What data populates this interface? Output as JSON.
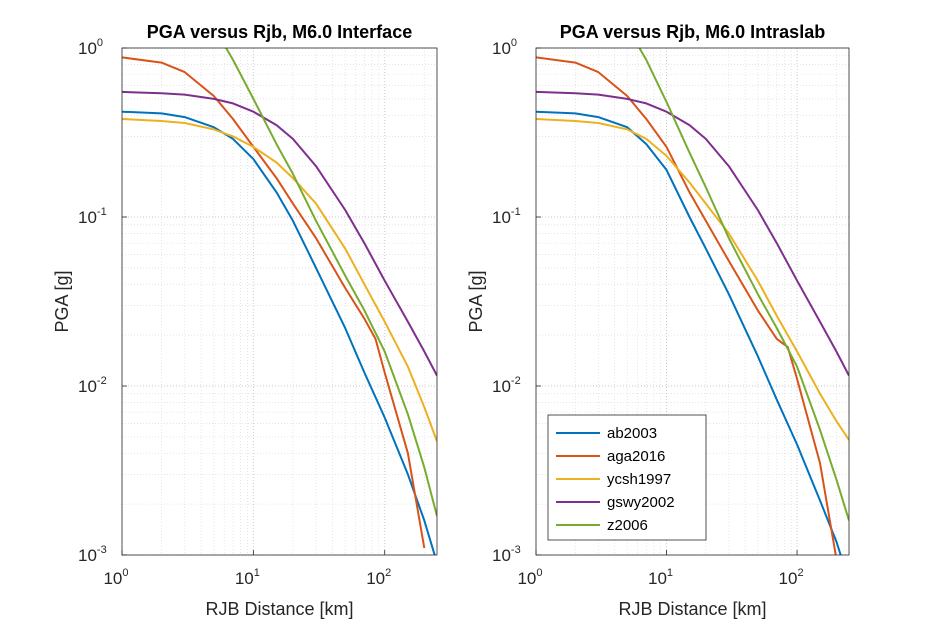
{
  "chart_data": [
    {
      "type": "line",
      "title": "PGA versus Rjb, M6.0 Interface",
      "xlabel": "RJB Distance [km]",
      "ylabel": "PGA [g]",
      "xscale": "log",
      "yscale": "log",
      "xlim": [
        1,
        250
      ],
      "ylim": [
        0.001,
        1
      ],
      "x_ticks": [
        "10^0",
        "10^1",
        "10^2"
      ],
      "y_ticks": [
        "10^-3",
        "10^-2",
        "10^-1",
        "10^0"
      ],
      "grid": "major and minor, dotted",
      "series": [
        {
          "name": "ab2003",
          "color": "#0072BD",
          "x": [
            1,
            2,
            3,
            5,
            7,
            10,
            15,
            20,
            30,
            50,
            70,
            100,
            150,
            200,
            250
          ],
          "y": [
            0.42,
            0.41,
            0.39,
            0.34,
            0.29,
            0.22,
            0.14,
            0.095,
            0.05,
            0.022,
            0.012,
            0.0065,
            0.003,
            0.0016,
            0.0009
          ]
        },
        {
          "name": "aga2016",
          "color": "#D95319",
          "x": [
            1,
            2,
            3,
            5,
            7,
            10,
            15,
            20,
            30,
            50,
            70,
            85,
            100,
            150,
            200
          ],
          "y": [
            0.88,
            0.82,
            0.72,
            0.52,
            0.38,
            0.26,
            0.17,
            0.12,
            0.075,
            0.038,
            0.025,
            0.019,
            0.012,
            0.004,
            0.0011
          ]
        },
        {
          "name": "ycsh1997",
          "color": "#EDB120",
          "x": [
            1,
            2,
            3,
            5,
            7,
            10,
            15,
            20,
            30,
            50,
            70,
            100,
            150,
            200,
            250
          ],
          "y": [
            0.38,
            0.37,
            0.36,
            0.33,
            0.3,
            0.26,
            0.21,
            0.17,
            0.12,
            0.065,
            0.04,
            0.024,
            0.013,
            0.0075,
            0.0047
          ]
        },
        {
          "name": "gswy2002",
          "color": "#7E2F8E",
          "x": [
            1,
            2,
            3,
            5,
            7,
            10,
            15,
            20,
            30,
            50,
            70,
            100,
            150,
            200,
            250
          ],
          "y": [
            0.55,
            0.54,
            0.53,
            0.5,
            0.47,
            0.42,
            0.35,
            0.29,
            0.2,
            0.11,
            0.07,
            0.042,
            0.024,
            0.016,
            0.0115
          ]
        },
        {
          "name": "z2006",
          "color": "#77AC30",
          "x": [
            6.2,
            7,
            10,
            15,
            20,
            30,
            50,
            70,
            100,
            150,
            200,
            250
          ],
          "y": [
            1.0,
            0.85,
            0.5,
            0.27,
            0.18,
            0.095,
            0.045,
            0.028,
            0.016,
            0.0068,
            0.0033,
            0.0017
          ]
        }
      ]
    },
    {
      "type": "line",
      "title": "PGA versus Rjb, M6.0 Intraslab",
      "xlabel": "RJB Distance [km]",
      "ylabel": "PGA [g]",
      "xscale": "log",
      "yscale": "log",
      "xlim": [
        1,
        250
      ],
      "ylim": [
        0.001,
        1
      ],
      "x_ticks": [
        "10^0",
        "10^1",
        "10^2"
      ],
      "y_ticks": [
        "10^-3",
        "10^-2",
        "10^-1",
        "10^0"
      ],
      "grid": "major and minor, dotted",
      "legend": {
        "placement": "bottom-left",
        "entries": [
          "ab2003",
          "aga2016",
          "ycsh1997",
          "gswy2002",
          "z2006"
        ]
      },
      "series": [
        {
          "name": "ab2003",
          "color": "#0072BD",
          "x": [
            1,
            2,
            3,
            5,
            7,
            10,
            15,
            20,
            30,
            50,
            70,
            100,
            150,
            200,
            250
          ],
          "y": [
            0.42,
            0.41,
            0.39,
            0.34,
            0.27,
            0.19,
            0.1,
            0.065,
            0.035,
            0.015,
            0.0083,
            0.0045,
            0.0021,
            0.0012,
            0.0007
          ]
        },
        {
          "name": "aga2016",
          "color": "#D95319",
          "x": [
            1,
            2,
            3,
            5,
            7,
            10,
            15,
            20,
            30,
            50,
            70,
            85,
            100,
            150,
            200
          ],
          "y": [
            0.88,
            0.82,
            0.72,
            0.52,
            0.38,
            0.26,
            0.14,
            0.095,
            0.055,
            0.028,
            0.019,
            0.017,
            0.011,
            0.0035,
            0.00095
          ]
        },
        {
          "name": "ycsh1997",
          "color": "#EDB120",
          "x": [
            1,
            2,
            3,
            5,
            7,
            10,
            15,
            20,
            30,
            50,
            70,
            100,
            150,
            200,
            250
          ],
          "y": [
            0.38,
            0.37,
            0.36,
            0.33,
            0.29,
            0.23,
            0.16,
            0.12,
            0.08,
            0.042,
            0.026,
            0.016,
            0.009,
            0.0062,
            0.0048
          ]
        },
        {
          "name": "gswy2002",
          "color": "#7E2F8E",
          "x": [
            1,
            2,
            3,
            5,
            7,
            10,
            15,
            20,
            30,
            50,
            70,
            100,
            150,
            200,
            250
          ],
          "y": [
            0.55,
            0.54,
            0.53,
            0.5,
            0.47,
            0.42,
            0.35,
            0.29,
            0.2,
            0.11,
            0.07,
            0.042,
            0.024,
            0.016,
            0.0115
          ]
        },
        {
          "name": "z2006",
          "color": "#77AC30",
          "x": [
            6.2,
            7,
            10,
            15,
            20,
            30,
            50,
            70,
            100,
            150,
            200,
            250
          ],
          "y": [
            1.0,
            0.85,
            0.48,
            0.24,
            0.15,
            0.075,
            0.035,
            0.022,
            0.013,
            0.0055,
            0.0028,
            0.0016
          ]
        }
      ]
    }
  ]
}
